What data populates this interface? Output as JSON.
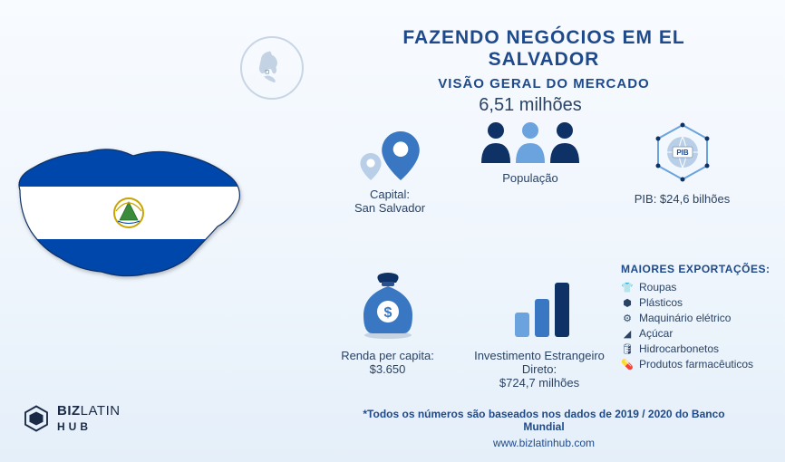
{
  "title": {
    "main": "FAZENDO NEGÓCIOS EM EL SALVADOR",
    "sub": "VISÃO GERAL DO MERCADO"
  },
  "colors": {
    "accent": "#1e4a8c",
    "deep": "#0e3166",
    "light": "#6aa3dd",
    "text": "#2a4365",
    "gray": "#8fa5bf",
    "flagBlue": "#0047ab"
  },
  "capital": {
    "label": "Capital:",
    "value": "San Salvador"
  },
  "population": {
    "value": "6,51 milhões",
    "label": "População"
  },
  "gdp": {
    "label": "PIB: $24,6 bilhões",
    "badge": "PIB"
  },
  "income": {
    "label": "Renda per capita:",
    "value": "$3.650"
  },
  "fdi": {
    "label": "Investimento Estrangeiro Direto:",
    "value": "$724,7 milhões",
    "bars": [
      0.45,
      0.7,
      1.0
    ],
    "barColors": [
      "#6aa3dd",
      "#3a77c2",
      "#0e3166"
    ]
  },
  "exports": {
    "title": "MAIORES EXPORTAÇÕES:",
    "items": [
      {
        "icon": "👕",
        "label": "Roupas"
      },
      {
        "icon": "⬢",
        "label": "Plásticos"
      },
      {
        "icon": "⚙",
        "label": "Maquinário elétrico"
      },
      {
        "icon": "◢",
        "label": "Açúcar"
      },
      {
        "icon": "🛢",
        "label": "Hidrocarbonetos"
      },
      {
        "icon": "💊",
        "label": "Produtos farmacêuticos"
      }
    ]
  },
  "footer": {
    "note": "*Todos os números são baseados nos dados de 2019 / 2020 do Banco Mundial",
    "url": "www.bizlatinhub.com"
  },
  "brand": {
    "a": "BIZ",
    "b": "LATIN",
    "c": "HUB"
  }
}
